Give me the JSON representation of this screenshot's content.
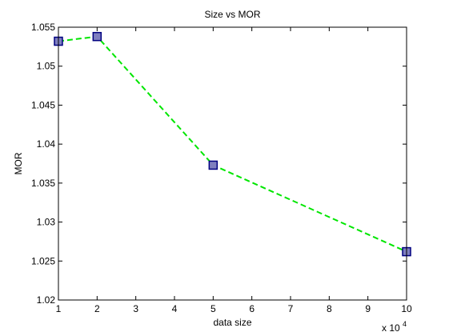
{
  "chart_data": {
    "type": "line",
    "title": "Size vs MOR",
    "xlabel": "data size",
    "ylabel": "MOR",
    "x_exponent_base": "x 10",
    "x_exponent_power": "4",
    "xlim": [
      1,
      10
    ],
    "ylim": [
      1.02,
      1.055
    ],
    "x_ticks": [
      1,
      2,
      3,
      4,
      5,
      6,
      7,
      8,
      9,
      10
    ],
    "x_tick_labels": [
      "1",
      "2",
      "3",
      "4",
      "5",
      "6",
      "7",
      "8",
      "9",
      "10"
    ],
    "y_ticks": [
      1.02,
      1.025,
      1.03,
      1.035,
      1.04,
      1.045,
      1.05,
      1.055
    ],
    "y_tick_labels": [
      "1.02",
      "1.025",
      "1.03",
      "1.035",
      "1.04",
      "1.045",
      "1.05",
      "1.055"
    ],
    "grid": false,
    "series": [
      {
        "x": [
          1,
          2,
          5,
          10
        ],
        "y": [
          1.0532,
          1.0538,
          1.0373,
          1.0262
        ],
        "line_color": "#00e600",
        "line_style": "dashed",
        "marker": "square",
        "marker_face": "#7f7fbf",
        "marker_edge": "#000080"
      }
    ]
  }
}
